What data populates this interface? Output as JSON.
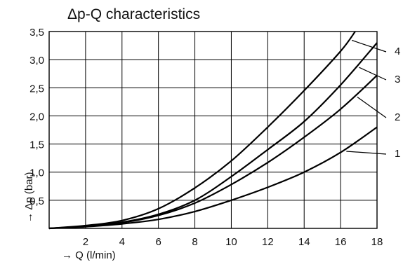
{
  "chart_data": {
    "type": "line",
    "title": "Δp-Q characteristics",
    "xlabel": "→ Q (l/min)",
    "ylabel": "→ Δp (bar)",
    "xlim": [
      0,
      18
    ],
    "ylim": [
      0,
      3.5
    ],
    "x_ticks": [
      "2",
      "4",
      "6",
      "8",
      "10",
      "12",
      "14",
      "16",
      "18"
    ],
    "y_ticks": [
      "0,5",
      "1,0",
      "1,5",
      "2,0",
      "2,5",
      "3,0",
      "3,5"
    ],
    "grid": true,
    "series": [
      {
        "name": "1",
        "x": [
          0,
          2,
          4,
          6,
          8,
          10,
          12,
          14,
          16,
          18
        ],
        "values": [
          0.0,
          0.03,
          0.08,
          0.16,
          0.3,
          0.5,
          0.73,
          1.0,
          1.35,
          1.8
        ]
      },
      {
        "name": "2",
        "x": [
          0,
          2,
          4,
          6,
          8,
          10,
          12,
          14,
          16,
          18
        ],
        "values": [
          0.0,
          0.04,
          0.1,
          0.23,
          0.45,
          0.78,
          1.17,
          1.62,
          2.12,
          2.72
        ]
      },
      {
        "name": "3",
        "x": [
          0,
          2,
          4,
          6,
          8,
          10,
          12,
          14,
          16,
          18
        ],
        "values": [
          0.0,
          0.04,
          0.11,
          0.25,
          0.5,
          0.92,
          1.4,
          1.9,
          2.55,
          3.3
        ]
      },
      {
        "name": "4",
        "x": [
          0,
          2,
          4,
          6,
          8,
          10,
          12,
          14,
          16,
          16.8
        ],
        "values": [
          0.0,
          0.05,
          0.14,
          0.35,
          0.72,
          1.2,
          1.8,
          2.45,
          3.15,
          3.5
        ]
      }
    ]
  }
}
